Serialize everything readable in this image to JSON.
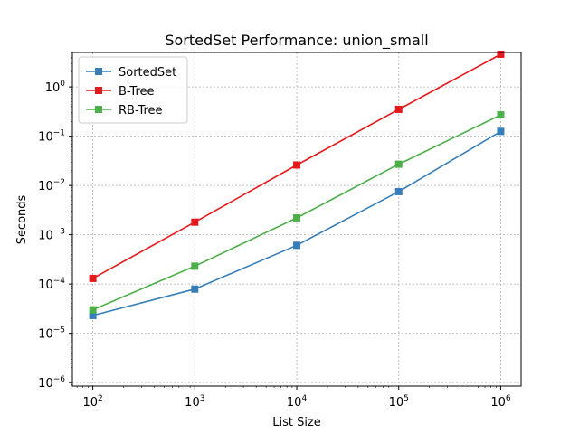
{
  "chart_data": {
    "type": "line",
    "title": "SortedSet Performance: union_small",
    "xlabel": "List Size",
    "ylabel": "Seconds",
    "xscale": "log",
    "yscale": "log",
    "x": [
      100,
      1000,
      10000,
      100000,
      1000000
    ],
    "xlim": [
      63,
      1585000
    ],
    "ylim": [
      8.5e-07,
      5.0
    ],
    "x_ticks": [
      {
        "base": "10",
        "exp": "2"
      },
      {
        "base": "10",
        "exp": "3"
      },
      {
        "base": "10",
        "exp": "4"
      },
      {
        "base": "10",
        "exp": "5"
      },
      {
        "base": "10",
        "exp": "6"
      }
    ],
    "y_ticks": [
      {
        "base": "10",
        "exp": "−6"
      },
      {
        "base": "10",
        "exp": "−5"
      },
      {
        "base": "10",
        "exp": "−4"
      },
      {
        "base": "10",
        "exp": "−3"
      },
      {
        "base": "10",
        "exp": "−2"
      },
      {
        "base": "10",
        "exp": "−1"
      },
      {
        "base": "10",
        "exp": "0"
      }
    ],
    "grid": true,
    "legend_position": "top-left",
    "series": [
      {
        "name": "SortedSet",
        "color": "#377eb8",
        "marker": "square",
        "values": [
          2.3e-05,
          7.9e-05,
          0.00061,
          0.0075,
          0.125
        ]
      },
      {
        "name": "B-Tree",
        "color": "#e41a1c",
        "marker": "square",
        "values": [
          0.00013,
          0.0018,
          0.026,
          0.35,
          4.6
        ]
      },
      {
        "name": "RB-Tree",
        "color": "#4daf4a",
        "marker": "square",
        "values": [
          3e-05,
          0.00023,
          0.0022,
          0.027,
          0.27
        ]
      }
    ]
  }
}
